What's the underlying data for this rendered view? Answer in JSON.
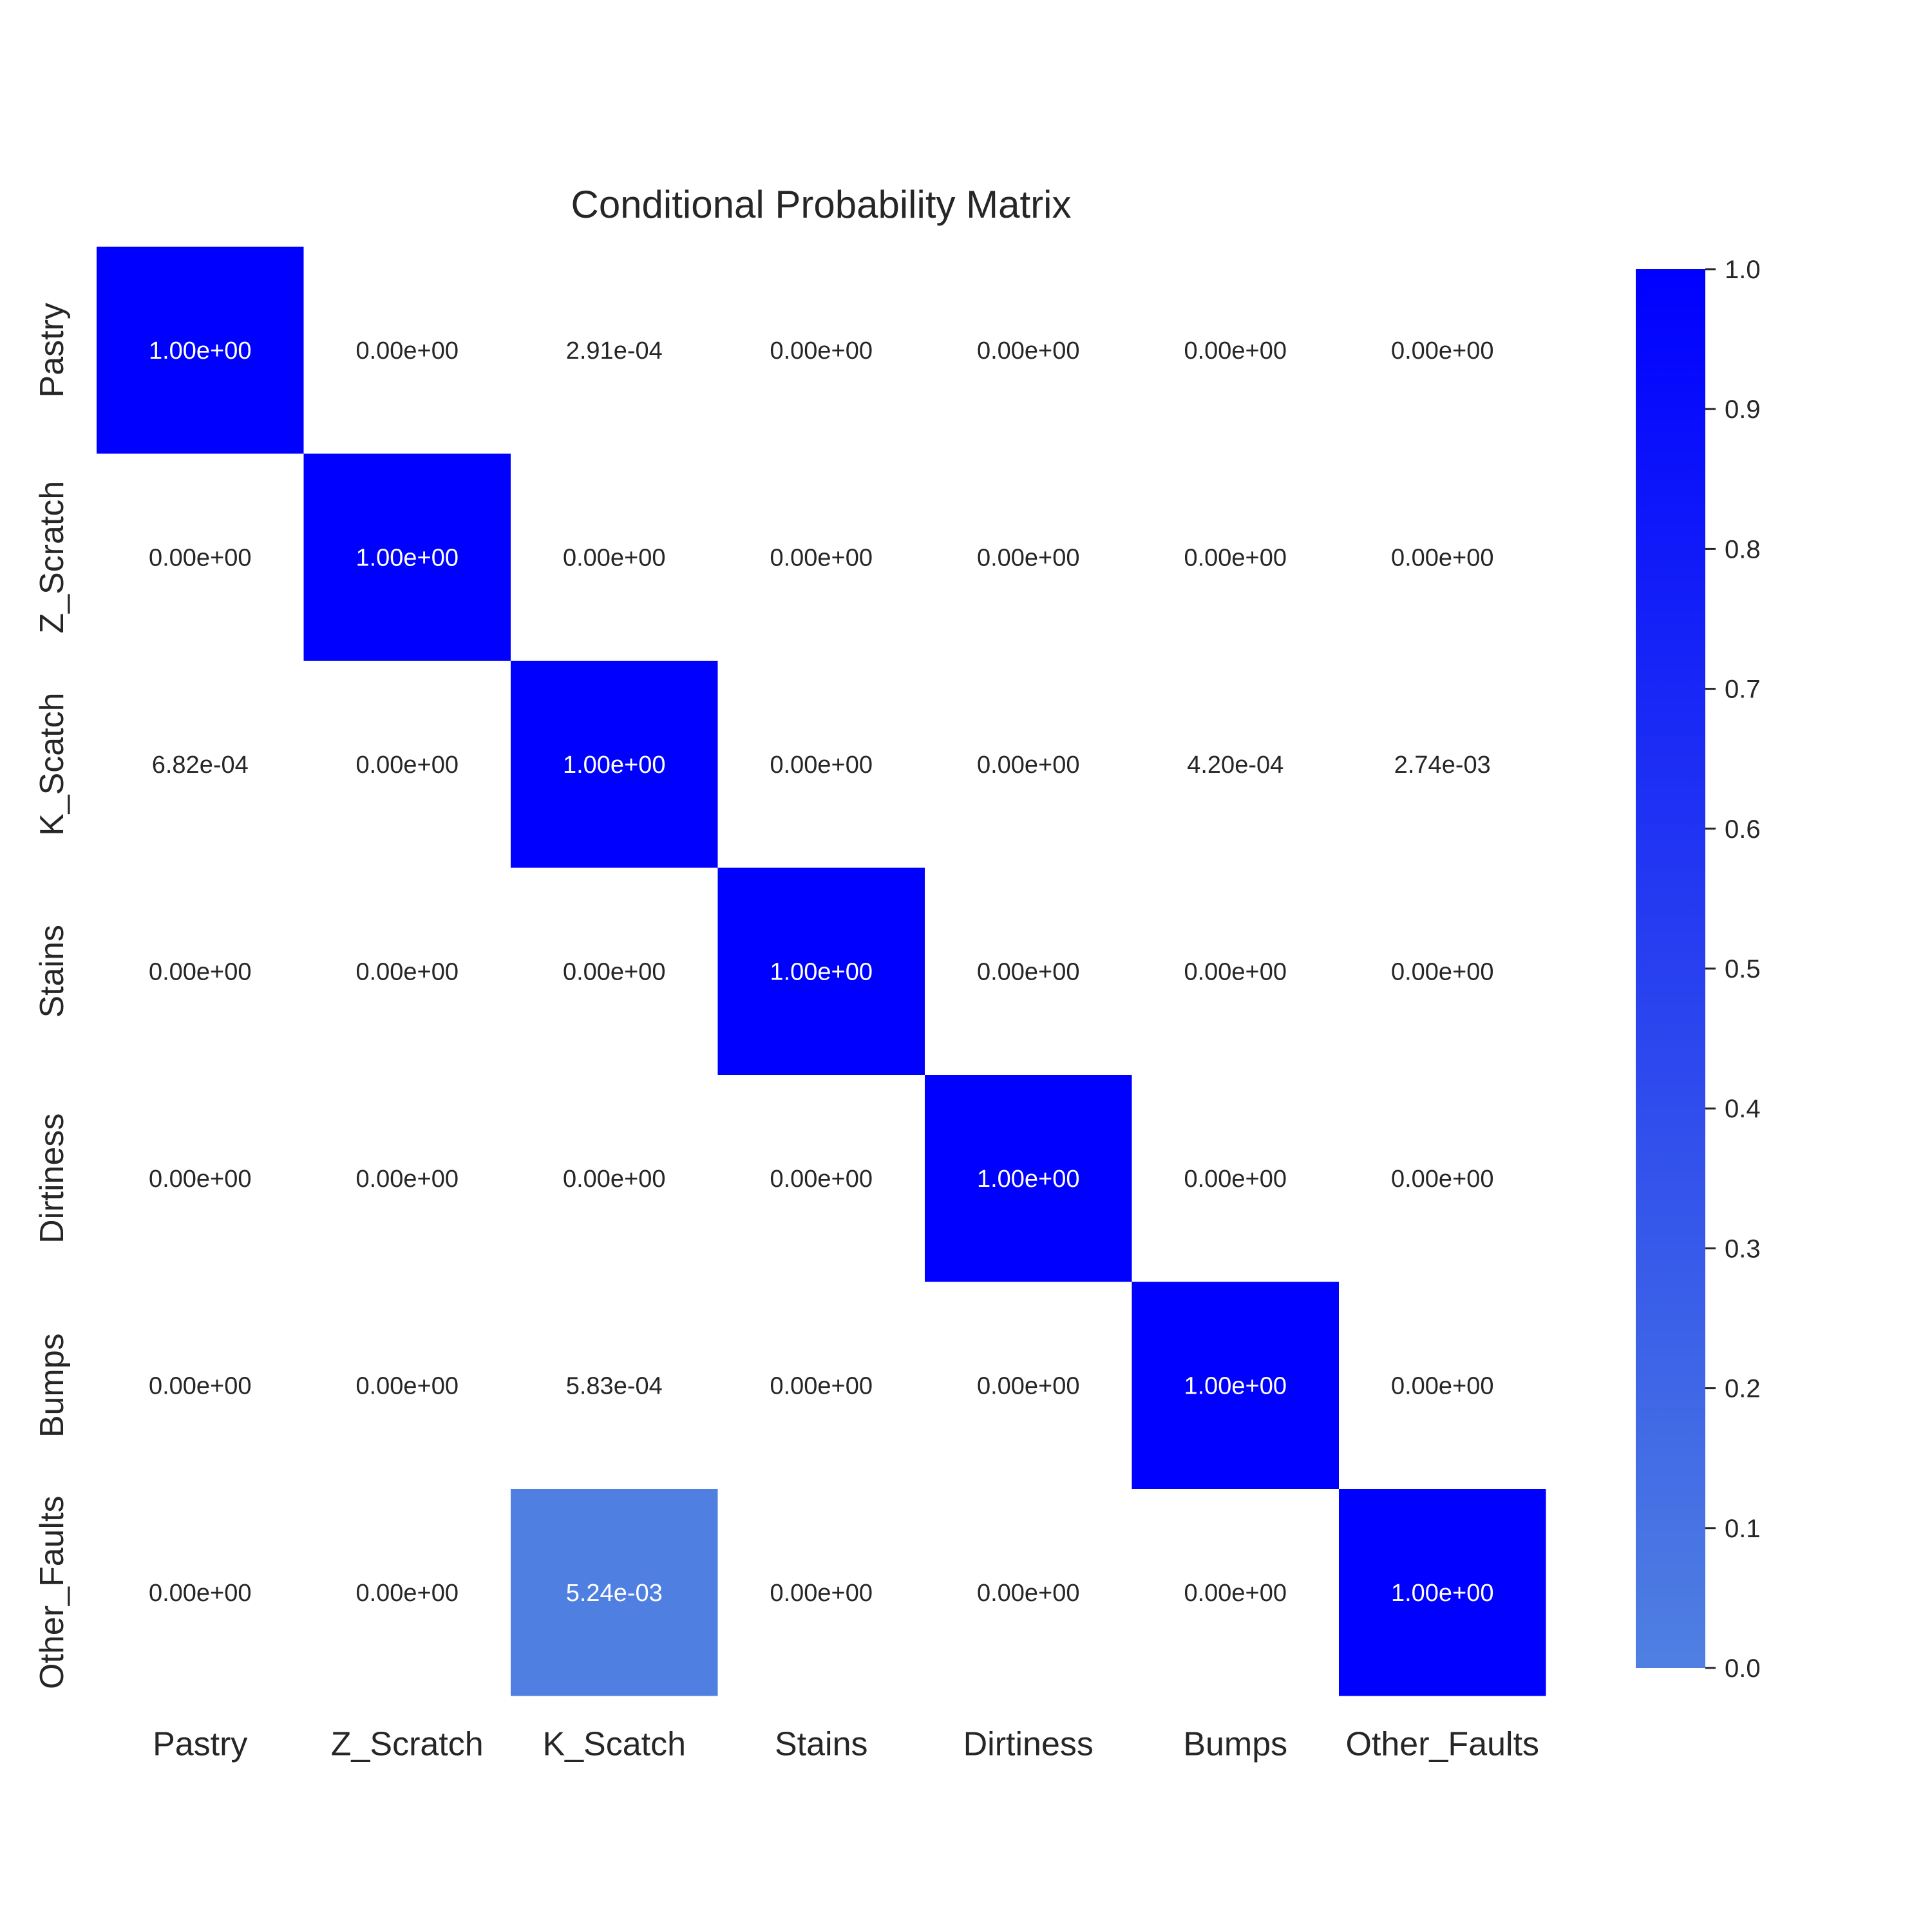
{
  "chart_data": {
    "type": "heatmap",
    "title": "Conditional Probability Matrix",
    "x_categories": [
      "Pastry",
      "Z_Scratch",
      "K_Scatch",
      "Stains",
      "Dirtiness",
      "Bumps",
      "Other_Faults"
    ],
    "y_categories": [
      "Pastry",
      "Z_Scratch",
      "K_Scatch",
      "Stains",
      "Dirtiness",
      "Bumps",
      "Other_Faults"
    ],
    "values": [
      [
        1.0,
        0.0,
        0.000291,
        0.0,
        0.0,
        0.0,
        0.0
      ],
      [
        0.0,
        1.0,
        0.0,
        0.0,
        0.0,
        0.0,
        0.0
      ],
      [
        0.000682,
        0.0,
        1.0,
        0.0,
        0.0,
        0.00042,
        0.00274
      ],
      [
        0.0,
        0.0,
        0.0,
        1.0,
        0.0,
        0.0,
        0.0
      ],
      [
        0.0,
        0.0,
        0.0,
        0.0,
        1.0,
        0.0,
        0.0
      ],
      [
        0.0,
        0.0,
        0.000583,
        0.0,
        0.0,
        1.0,
        0.0
      ],
      [
        0.0,
        0.0,
        0.00524,
        0.0,
        0.0,
        0.0,
        1.0
      ]
    ],
    "labels": [
      [
        "1.00e+00",
        "0.00e+00",
        "2.91e-04",
        "0.00e+00",
        "0.00e+00",
        "0.00e+00",
        "0.00e+00"
      ],
      [
        "0.00e+00",
        "1.00e+00",
        "0.00e+00",
        "0.00e+00",
        "0.00e+00",
        "0.00e+00",
        "0.00e+00"
      ],
      [
        "6.82e-04",
        "0.00e+00",
        "1.00e+00",
        "0.00e+00",
        "0.00e+00",
        "4.20e-04",
        "2.74e-03"
      ],
      [
        "0.00e+00",
        "0.00e+00",
        "0.00e+00",
        "1.00e+00",
        "0.00e+00",
        "0.00e+00",
        "0.00e+00"
      ],
      [
        "0.00e+00",
        "0.00e+00",
        "0.00e+00",
        "0.00e+00",
        "1.00e+00",
        "0.00e+00",
        "0.00e+00"
      ],
      [
        "0.00e+00",
        "0.00e+00",
        "5.83e-04",
        "0.00e+00",
        "0.00e+00",
        "1.00e+00",
        "0.00e+00"
      ],
      [
        "0.00e+00",
        "0.00e+00",
        "5.24e-03",
        "0.00e+00",
        "0.00e+00",
        "0.00e+00",
        "1.00e+00"
      ]
    ],
    "highlighted_cells": [
      {
        "row": 0,
        "col": 0
      },
      {
        "row": 1,
        "col": 1
      },
      {
        "row": 2,
        "col": 2
      },
      {
        "row": 3,
        "col": 3
      },
      {
        "row": 4,
        "col": 4
      },
      {
        "row": 5,
        "col": 5
      },
      {
        "row": 6,
        "col": 6
      },
      {
        "row": 6,
        "col": 2
      }
    ],
    "colorbar": {
      "range": [
        0.0,
        1.0
      ],
      "ticks": [
        "0.0",
        "0.1",
        "0.2",
        "0.3",
        "0.4",
        "0.5",
        "0.6",
        "0.7",
        "0.8",
        "0.9",
        "1.0"
      ],
      "color_low": "#4f80e1",
      "color_high": "#0000ff"
    },
    "cell_text_colors": {
      "on_dark": "#ffffff",
      "on_light": "#262626"
    },
    "grid": false,
    "legend": "colorbar-right"
  }
}
